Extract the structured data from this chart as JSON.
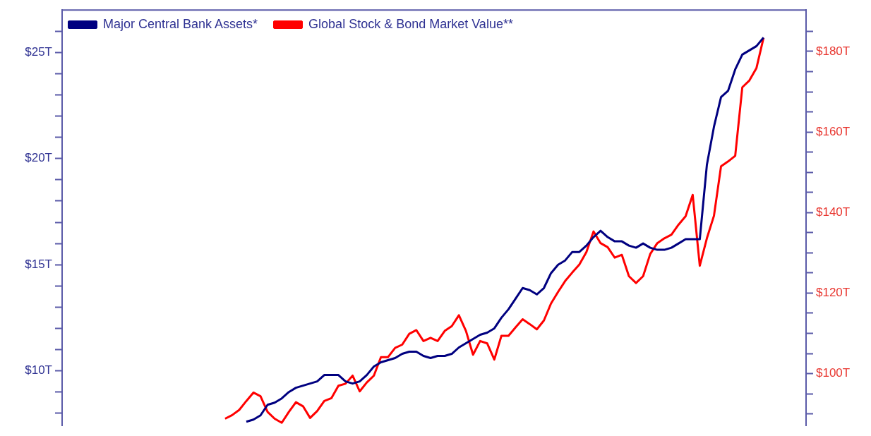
{
  "chart_data": {
    "type": "line",
    "categories": [
      null,
      null,
      null,
      null,
      null,
      null,
      null,
      null,
      null,
      null,
      null,
      null,
      null,
      null,
      null,
      null,
      null,
      null,
      null,
      null,
      null,
      null,
      null,
      null,
      null,
      null,
      null,
      null,
      null,
      null,
      null,
      null,
      null,
      null,
      null,
      null,
      null,
      null,
      null,
      null,
      null,
      null,
      null,
      null,
      null,
      null,
      null,
      null,
      null,
      null,
      null,
      null,
      null,
      null,
      null,
      null,
      null,
      null,
      null,
      null,
      null,
      null,
      null,
      null,
      null,
      null,
      null,
      null,
      null,
      null,
      null,
      null,
      null,
      null,
      null,
      null,
      null,
      null,
      null,
      null,
      null,
      null,
      null,
      null,
      null,
      null,
      null,
      null,
      null,
      null,
      null,
      null,
      null,
      null,
      null,
      null,
      null,
      null,
      null,
      null,
      null,
      null,
      null,
      null,
      null,
      null
    ],
    "series": [
      {
        "name": "Major Central Bank Assets*",
        "color": "#000080",
        "values": [
          null,
          null,
          null,
          null,
          null,
          null,
          null,
          null,
          null,
          null,
          null,
          null,
          null,
          null,
          null,
          null,
          null,
          null,
          null,
          null,
          null,
          null,
          null,
          null,
          null,
          null,
          7.6,
          7.7,
          7.9,
          8.4,
          8.5,
          8.7,
          9.0,
          9.2,
          9.3,
          9.4,
          9.5,
          9.8,
          9.8,
          9.8,
          9.5,
          9.4,
          9.5,
          9.8,
          10.2,
          10.4,
          10.5,
          10.6,
          10.8,
          10.9,
          10.9,
          10.7,
          10.6,
          10.7,
          10.7,
          10.8,
          11.1,
          11.3,
          11.5,
          11.7,
          11.8,
          12.0,
          12.5,
          12.9,
          13.4,
          13.9,
          13.8,
          13.6,
          13.9,
          14.6,
          15.0,
          15.2,
          15.6,
          15.6,
          15.9,
          16.3,
          16.6,
          16.3,
          16.1,
          16.1,
          15.9,
          15.8,
          16.0,
          15.8,
          15.7,
          15.7,
          15.8,
          16.0,
          16.2,
          16.2,
          16.2,
          19.7,
          21.5,
          22.9,
          23.2,
          24.2,
          24.9,
          25.1,
          25.3,
          25.7,
          null,
          null,
          null,
          null,
          null,
          null
        ]
      },
      {
        "name": "Global Stock & Bond Market Value**",
        "color": "#ff0000",
        "axis": "y2",
        "values": [
          null,
          null,
          null,
          null,
          null,
          null,
          null,
          null,
          null,
          null,
          null,
          null,
          null,
          null,
          null,
          null,
          null,
          null,
          null,
          null,
          null,
          null,
          null,
          88.8,
          89.7,
          91.0,
          93.2,
          95.3,
          94.4,
          90.5,
          88.8,
          87.8,
          90.5,
          92.9,
          91.9,
          89.0,
          90.7,
          93.2,
          93.9,
          97.0,
          97.5,
          99.5,
          95.6,
          97.8,
          99.5,
          104.1,
          104.1,
          106.4,
          107.2,
          109.9,
          110.8,
          108.1,
          108.9,
          108.1,
          110.6,
          111.8,
          114.5,
          110.6,
          104.7,
          108.1,
          107.5,
          103.5,
          109.4,
          109.4,
          111.5,
          113.5,
          112.3,
          111.0,
          113.2,
          117.4,
          120.3,
          123.0,
          125.1,
          127.1,
          130.2,
          135.3,
          132.4,
          131.4,
          128.8,
          129.5,
          124.2,
          122.5,
          124.2,
          129.7,
          132.4,
          133.6,
          134.5,
          137.0,
          139.1,
          144.4,
          126.8,
          133.6,
          139.2,
          151.5,
          152.7,
          154.1,
          171.1,
          172.8,
          175.9,
          183.4,
          null,
          null,
          null,
          null,
          null,
          null
        ]
      }
    ],
    "ylim": [
      7.4,
      27
    ],
    "yticks": [
      {
        "value": 8,
        "label": null
      },
      {
        "value": 9,
        "label": null
      },
      {
        "value": 10,
        "label": "$10T"
      },
      {
        "value": 11,
        "label": null
      },
      {
        "value": 12,
        "label": null
      },
      {
        "value": 13,
        "label": null
      },
      {
        "value": 14,
        "label": null
      },
      {
        "value": 15,
        "label": "$15T"
      },
      {
        "value": 16,
        "label": null
      },
      {
        "value": 17,
        "label": null
      },
      {
        "value": 18,
        "label": null
      },
      {
        "value": 19,
        "label": null
      },
      {
        "value": 20,
        "label": "$20T"
      },
      {
        "value": 21,
        "label": null
      },
      {
        "value": 22,
        "label": null
      },
      {
        "value": 23,
        "label": null
      },
      {
        "value": 24,
        "label": null
      },
      {
        "value": 25,
        "label": "$25T"
      },
      {
        "value": 26,
        "label": null
      }
    ],
    "y2lim": [
      87,
      190.3
    ],
    "y2ticks": [
      {
        "value": 90,
        "label": null
      },
      {
        "value": 95,
        "label": null
      },
      {
        "value": 100,
        "label": "$100T"
      },
      {
        "value": 105,
        "label": null
      },
      {
        "value": 110,
        "label": null
      },
      {
        "value": 115,
        "label": null
      },
      {
        "value": 120,
        "label": "$120T"
      },
      {
        "value": 125,
        "label": null
      },
      {
        "value": 130,
        "label": null
      },
      {
        "value": 135,
        "label": null
      },
      {
        "value": 140,
        "label": "$140T"
      },
      {
        "value": 145,
        "label": null
      },
      {
        "value": 150,
        "label": null
      },
      {
        "value": 155,
        "label": null
      },
      {
        "value": 160,
        "label": "$160T"
      },
      {
        "value": 165,
        "label": null
      },
      {
        "value": 170,
        "label": null
      },
      {
        "value": 175,
        "label": null
      },
      {
        "value": 180,
        "label": "$180T"
      },
      {
        "value": 185,
        "label": null
      }
    ],
    "tick_labels": "y",
    "legend": "top left"
  }
}
